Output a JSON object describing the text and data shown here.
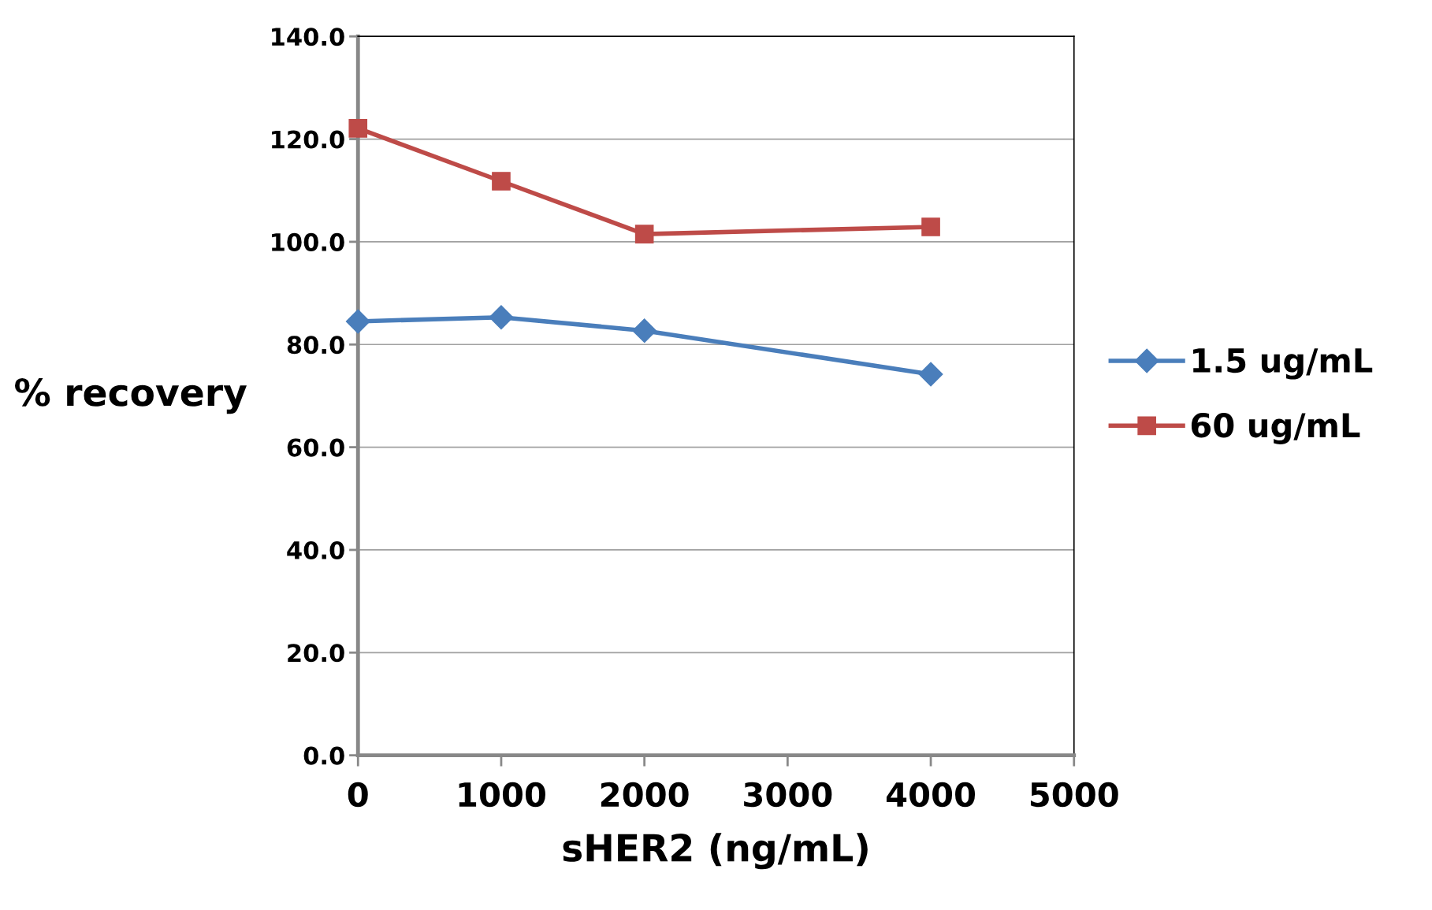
{
  "chart_data": {
    "type": "line",
    "xlabel": "sHER2 (ng/mL)",
    "ylabel": "% recovery",
    "x": [
      0,
      1000,
      2000,
      4000
    ],
    "series": [
      {
        "name": "1.5 ug/mL",
        "color": "#4a7ebb",
        "values": [
          84.5,
          85.3,
          82.7,
          74.2
        ],
        "marker": "diamond"
      },
      {
        "name": "60 ug/mL",
        "color": "#be4b48",
        "values": [
          122.1,
          111.8,
          101.5,
          102.9
        ],
        "marker": "square"
      }
    ],
    "xlim": [
      0,
      5000
    ],
    "xticks": [
      0,
      1000,
      2000,
      3000,
      4000,
      5000
    ],
    "ylim": [
      0,
      140
    ],
    "yticks": [
      {
        "value": 0,
        "label": "0.0"
      },
      {
        "value": 20,
        "label": "20.0"
      },
      {
        "value": 40,
        "label": "40.0"
      },
      {
        "value": 60,
        "label": "60.0"
      },
      {
        "value": 80,
        "label": "80.0"
      },
      {
        "value": 100,
        "label": "100.0"
      },
      {
        "value": 120,
        "label": "120.0"
      },
      {
        "value": 140,
        "label": "140.0"
      }
    ],
    "grid": "y",
    "legend": "right",
    "line_style": "solid"
  }
}
